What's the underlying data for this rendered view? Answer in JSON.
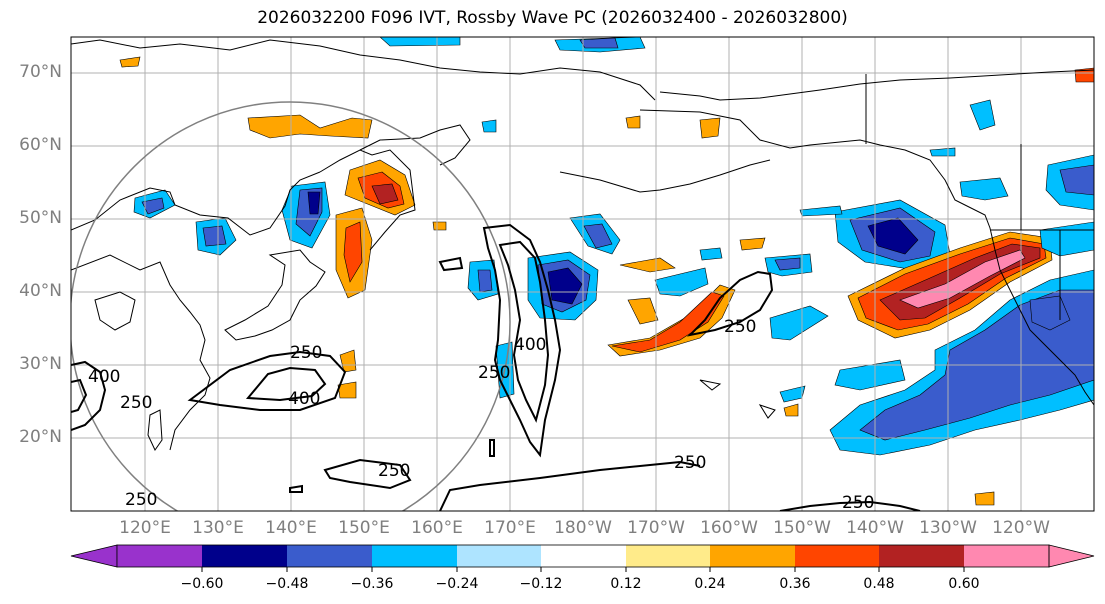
{
  "title": "2026032200 F096 IVT, Rossby Wave PC (2026032400 - 2026032800)",
  "lat_labels": [
    "70°N",
    "60°N",
    "50°N",
    "40°N",
    "30°N",
    "20°N"
  ],
  "lon_labels": [
    "120°E",
    "130°E",
    "140°E",
    "150°E",
    "160°E",
    "170°E",
    "180°W",
    "170°W",
    "160°W",
    "150°W",
    "140°W",
    "130°W",
    "120°W"
  ],
  "colorbar": {
    "colors": [
      "#9932cc",
      "#00008b",
      "#3a5ccc",
      "#00bfff",
      "#aee4ff",
      "#ffffff",
      "#ffeb8a",
      "#ffa500",
      "#ff4500",
      "#b22222",
      "#ff88b0"
    ],
    "tick_labels": [
      "−0.60",
      "−0.48",
      "−0.36",
      "−0.24",
      "−0.12",
      "0.12",
      "0.24",
      "0.36",
      "0.48",
      "0.60"
    ]
  },
  "contour_labels": [
    "250",
    "400",
    "250",
    "400",
    "250",
    "400",
    "250",
    "250",
    "250",
    "250",
    "250"
  ]
}
